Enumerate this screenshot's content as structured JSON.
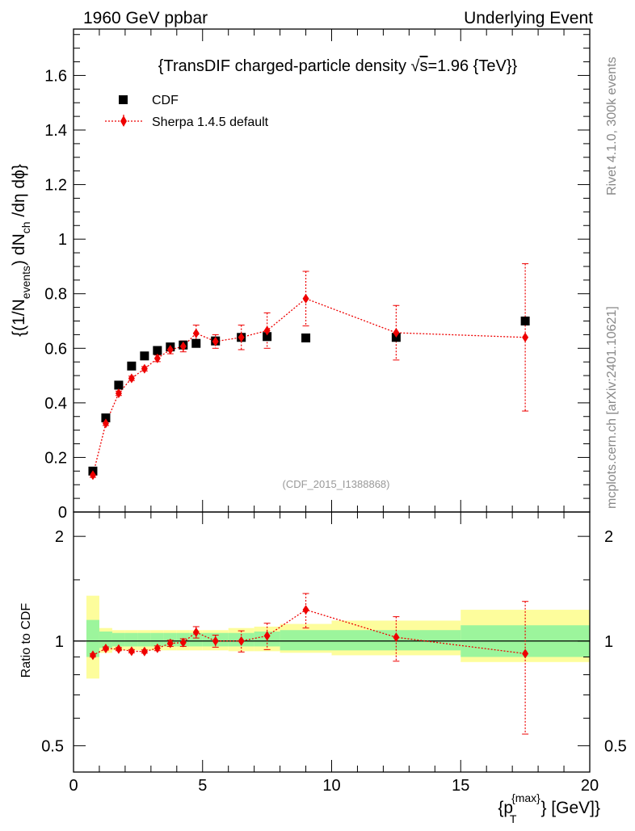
{
  "header": {
    "left": "1960 GeV ppbar",
    "right": "Underlying Event"
  },
  "side_labels": {
    "rivet": "Rivet 4.1.0,  300k events",
    "mcplots": "mcplots.cern.ch [arXiv:2401.10621]"
  },
  "chart_data": [
    {
      "type": "scatter",
      "panel": "main",
      "title": "{TransDIF charged-particle density √s=1.96 {TeV}}",
      "title_parts": {
        "pre": "{TransDIF charged-particle density ",
        "sqrt": "√",
        "s": "s",
        "post": "=1.96 {TeV}}"
      },
      "watermark": "(CDF_2015_I1388868)",
      "ylabel": "{(1/N_events) dN_ch /dη  dϕ}",
      "ylabel_parts": {
        "a": "{(1/N",
        "b": "events",
        "c": ") dN",
        "d": "ch",
        "e": " /dη  dϕ}"
      },
      "xlim": [
        0,
        20
      ],
      "ylim": [
        0,
        1.77
      ],
      "yticks": [
        0,
        0.2,
        0.4,
        0.6,
        0.8,
        1,
        1.2,
        1.4,
        1.6
      ],
      "ytick_labels": [
        "0",
        "0.2",
        "0.4",
        "0.6",
        "0.8",
        "1",
        "1.2",
        "1.4",
        "1.6"
      ],
      "legend": {
        "placement": "top-left",
        "entries": [
          "CDF",
          "Sherpa 1.4.5 default"
        ]
      },
      "series": [
        {
          "name": "CDF",
          "marker": "square",
          "color": "#000000",
          "x": [
            0.75,
            1.25,
            1.75,
            2.25,
            2.75,
            3.25,
            3.75,
            4.25,
            4.75,
            5.5,
            6.5,
            7.5,
            9.0,
            12.5,
            17.5
          ],
          "y": [
            0.15,
            0.345,
            0.465,
            0.535,
            0.572,
            0.592,
            0.605,
            0.612,
            0.618,
            0.627,
            0.64,
            0.643,
            0.638,
            0.64,
            0.7
          ]
        },
        {
          "name": "Sherpa 1.4.5 default",
          "marker": "diamond",
          "color": "#ee0000",
          "line": "dotted",
          "x": [
            0.75,
            1.25,
            1.75,
            2.25,
            2.75,
            3.25,
            3.75,
            4.25,
            4.75,
            5.5,
            6.5,
            7.5,
            9.0,
            12.5,
            17.5
          ],
          "y": [
            0.135,
            0.325,
            0.435,
            0.49,
            0.525,
            0.563,
            0.595,
            0.607,
            0.655,
            0.625,
            0.64,
            0.665,
            0.782,
            0.657,
            0.64
          ],
          "err": [
            0.008,
            0.008,
            0.008,
            0.008,
            0.008,
            0.012,
            0.015,
            0.02,
            0.03,
            0.025,
            0.045,
            0.065,
            0.1,
            0.1,
            0.27
          ]
        }
      ]
    },
    {
      "type": "scatter",
      "panel": "ratio",
      "ylabel": "Ratio to CDF",
      "xlabel": "{p_T^{max}} [GeV]}",
      "xlabel_parts": {
        "a": "{p",
        "sub": "T",
        "sup": "{max}",
        "b": "} [GeV]}"
      },
      "xlim": [
        0,
        20
      ],
      "ylim": [
        0.42,
        2.35
      ],
      "ylog": true,
      "xticks": [
        0,
        5,
        10,
        15,
        20
      ],
      "xtick_labels": [
        "0",
        "5",
        "10",
        "15",
        "20"
      ],
      "yticks": [
        0.5,
        1,
        2
      ],
      "ytick_labels": [
        "0.5",
        "1",
        "2"
      ],
      "bands": {
        "bins": [
          [
            0.5,
            1.0
          ],
          [
            1.0,
            1.5
          ],
          [
            1.5,
            2.0
          ],
          [
            2.0,
            2.5
          ],
          [
            2.5,
            3.0
          ],
          [
            3.0,
            3.5
          ],
          [
            3.5,
            4.0
          ],
          [
            4.0,
            4.5
          ],
          [
            4.5,
            5.0
          ],
          [
            5.0,
            6.0
          ],
          [
            6.0,
            7.0
          ],
          [
            7.0,
            8.0
          ],
          [
            8.0,
            10.0
          ],
          [
            10.0,
            15.0
          ],
          [
            15.0,
            20.0
          ]
        ],
        "stat_lo": [
          0.9,
          0.955,
          0.965,
          0.965,
          0.965,
          0.965,
          0.965,
          0.965,
          0.965,
          0.965,
          0.965,
          0.965,
          0.94,
          0.94,
          0.9
        ],
        "stat_hi": [
          1.15,
          1.065,
          1.055,
          1.055,
          1.055,
          1.055,
          1.055,
          1.055,
          1.055,
          1.055,
          1.055,
          1.065,
          1.075,
          1.075,
          1.11
        ],
        "tot_lo": [
          0.78,
          0.925,
          0.94,
          0.94,
          0.94,
          0.94,
          0.94,
          0.94,
          0.94,
          0.94,
          0.935,
          0.935,
          0.925,
          0.91,
          0.87
        ],
        "tot_hi": [
          1.35,
          1.09,
          1.075,
          1.075,
          1.075,
          1.075,
          1.075,
          1.075,
          1.075,
          1.075,
          1.09,
          1.1,
          1.12,
          1.145,
          1.23
        ],
        "stat_color": "#9cf59c",
        "tot_color": "#fdfd9c"
      },
      "series": [
        {
          "name": "Sherpa 1.4.5 default",
          "marker": "diamond",
          "color": "#ee0000",
          "line": "dotted",
          "x": [
            0.75,
            1.25,
            1.75,
            2.25,
            2.75,
            3.25,
            3.75,
            4.25,
            4.75,
            5.5,
            6.5,
            7.5,
            9.0,
            12.5,
            17.5
          ],
          "y": [
            0.91,
            0.952,
            0.948,
            0.935,
            0.933,
            0.953,
            0.985,
            0.99,
            1.06,
            1.0,
            1.0,
            1.035,
            1.23,
            1.025,
            0.92
          ],
          "err": [
            0.01,
            0.01,
            0.01,
            0.01,
            0.01,
            0.015,
            0.02,
            0.025,
            0.04,
            0.04,
            0.07,
            0.09,
            0.14,
            0.15,
            0.38
          ]
        }
      ]
    }
  ]
}
